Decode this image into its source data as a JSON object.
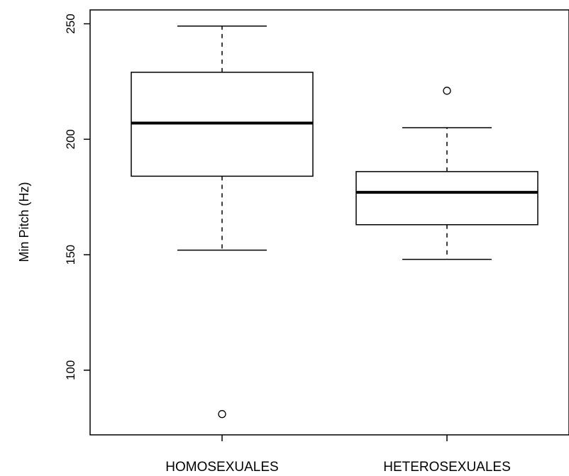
{
  "chart_data": {
    "type": "boxplot",
    "title": "",
    "xlabel": "",
    "ylabel": "Min Pitch (Hz)",
    "ylim": [
      72,
      256
    ],
    "yticks": [
      100,
      150,
      200,
      250
    ],
    "grid": false,
    "legend": "none",
    "categories": [
      "HOMOSEXUALES",
      "HETEROSEXUALES"
    ],
    "boxes": [
      {
        "category": "HOMOSEXUALES",
        "whisker_low": 152,
        "q1": 184,
        "median": 207,
        "q3": 229,
        "whisker_high": 249,
        "outliers": [
          81
        ]
      },
      {
        "category": "HETEROSEXUALES",
        "whisker_low": 148,
        "q1": 163,
        "median": 177,
        "q3": 186,
        "whisker_high": 205,
        "outliers": [
          221
        ]
      }
    ]
  }
}
